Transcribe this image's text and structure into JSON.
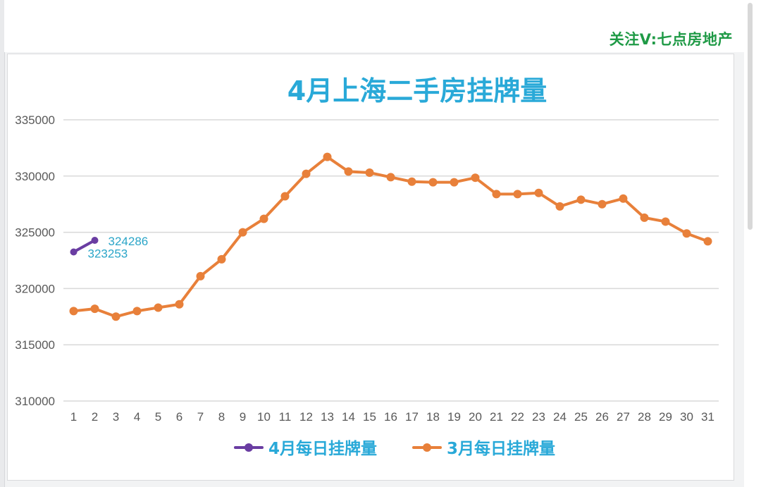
{
  "watermark": "关注V:七点房地产",
  "chart_data": {
    "type": "line",
    "title": "4月上海二手房挂牌量",
    "xlabel": "",
    "ylabel": "",
    "x": [
      1,
      2,
      3,
      4,
      5,
      6,
      7,
      8,
      9,
      10,
      11,
      12,
      13,
      14,
      15,
      16,
      17,
      18,
      19,
      20,
      21,
      22,
      23,
      24,
      25,
      26,
      27,
      28,
      29,
      30,
      31
    ],
    "ylim": [
      310000,
      335000
    ],
    "yticks": [
      310000,
      315000,
      320000,
      325000,
      330000,
      335000
    ],
    "grid": true,
    "legend_position": "bottom",
    "series": [
      {
        "name": "4月每日挂牌量",
        "color": "#6a3da2",
        "x": [
          1,
          2
        ],
        "values": [
          323253,
          324286
        ],
        "data_labels": [
          "323253",
          "324286"
        ]
      },
      {
        "name": "3月每日挂牌量",
        "color": "#e8803a",
        "x": [
          1,
          2,
          3,
          4,
          5,
          6,
          7,
          8,
          9,
          10,
          11,
          12,
          13,
          14,
          15,
          16,
          17,
          18,
          19,
          20,
          21,
          22,
          23,
          24,
          25,
          26,
          27,
          28,
          29,
          30,
          31
        ],
        "values": [
          318000,
          318200,
          317500,
          318000,
          318300,
          318600,
          321100,
          322600,
          325000,
          326200,
          328200,
          330200,
          331700,
          330400,
          330300,
          329900,
          329500,
          329450,
          329450,
          329850,
          328400,
          328400,
          328500,
          327300,
          327900,
          327500,
          328000,
          326300,
          325950,
          324900,
          324200
        ]
      }
    ]
  }
}
